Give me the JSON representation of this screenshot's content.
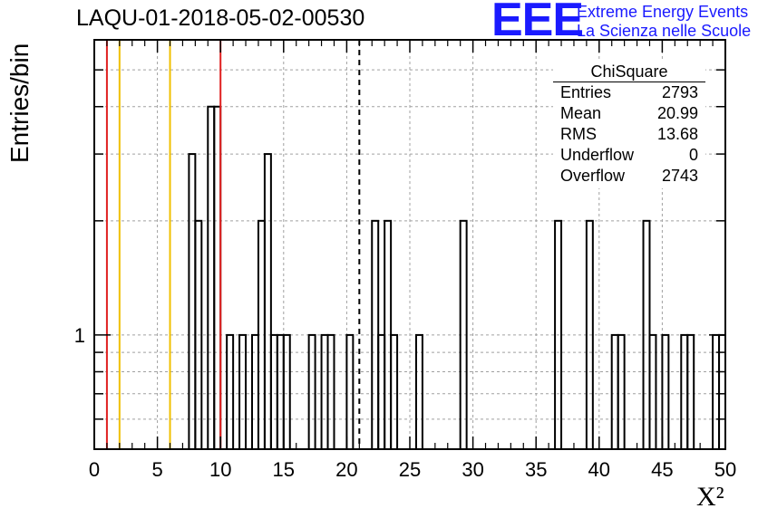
{
  "chart_data": {
    "type": "histogram",
    "title": "LAQU-01-2018-05-02-00530",
    "xlabel": "X²",
    "ylabel": "Entries/bin",
    "xlim": [
      0,
      50
    ],
    "ylim": [
      0.5,
      6
    ],
    "log_y": true,
    "grid": true,
    "bin_width": 0.5,
    "x_ticks": [
      0,
      5,
      10,
      15,
      20,
      25,
      30,
      35,
      40,
      45,
      50
    ],
    "y_tick_labels": [
      {
        "value": 1,
        "label": "1"
      }
    ],
    "bins": [
      {
        "x": 7.5,
        "y": 3
      },
      {
        "x": 8.0,
        "y": 2
      },
      {
        "x": 9.0,
        "y": 4
      },
      {
        "x": 9.5,
        "y": 4
      },
      {
        "x": 10.5,
        "y": 1
      },
      {
        "x": 11.5,
        "y": 1
      },
      {
        "x": 12.5,
        "y": 1
      },
      {
        "x": 13.0,
        "y": 2
      },
      {
        "x": 13.5,
        "y": 3
      },
      {
        "x": 14.0,
        "y": 1
      },
      {
        "x": 14.5,
        "y": 1
      },
      {
        "x": 15.0,
        "y": 1
      },
      {
        "x": 17.0,
        "y": 1
      },
      {
        "x": 18.0,
        "y": 1
      },
      {
        "x": 18.5,
        "y": 1
      },
      {
        "x": 20.0,
        "y": 1
      },
      {
        "x": 22.0,
        "y": 2
      },
      {
        "x": 22.5,
        "y": 1
      },
      {
        "x": 23.0,
        "y": 2
      },
      {
        "x": 23.5,
        "y": 1
      },
      {
        "x": 25.5,
        "y": 1
      },
      {
        "x": 29.0,
        "y": 2
      },
      {
        "x": 36.5,
        "y": 2
      },
      {
        "x": 39.0,
        "y": 2
      },
      {
        "x": 41.0,
        "y": 1
      },
      {
        "x": 41.5,
        "y": 1
      },
      {
        "x": 43.5,
        "y": 2
      },
      {
        "x": 44.0,
        "y": 1
      },
      {
        "x": 45.0,
        "y": 1
      },
      {
        "x": 46.5,
        "y": 1
      },
      {
        "x": 47.0,
        "y": 1
      },
      {
        "x": 49.0,
        "y": 1
      },
      {
        "x": 49.5,
        "y": 1
      }
    ],
    "vertical_lines": [
      {
        "x": 1,
        "color": "#e02020",
        "style": "solid"
      },
      {
        "x": 2,
        "color": "#f0c000",
        "style": "solid"
      },
      {
        "x": 6,
        "color": "#f0c000",
        "style": "solid"
      },
      {
        "x": 10,
        "color": "#e02020",
        "style": "solid"
      },
      {
        "x": 21,
        "color": "#000000",
        "style": "dashed"
      }
    ],
    "stats_box": {
      "title": "ChiSquare",
      "rows": [
        {
          "label": "Entries",
          "value": "2793"
        },
        {
          "label": "Mean",
          "value": "20.99"
        },
        {
          "label": "RMS",
          "value": "13.68"
        },
        {
          "label": "Underflow",
          "value": "0"
        },
        {
          "label": "Overflow",
          "value": "2743"
        }
      ]
    }
  },
  "logo": {
    "letters": "EEE",
    "line1": "Extreme Energy Events",
    "line2": "La Scienza nelle Scuole",
    "color": "#1a1aff"
  }
}
